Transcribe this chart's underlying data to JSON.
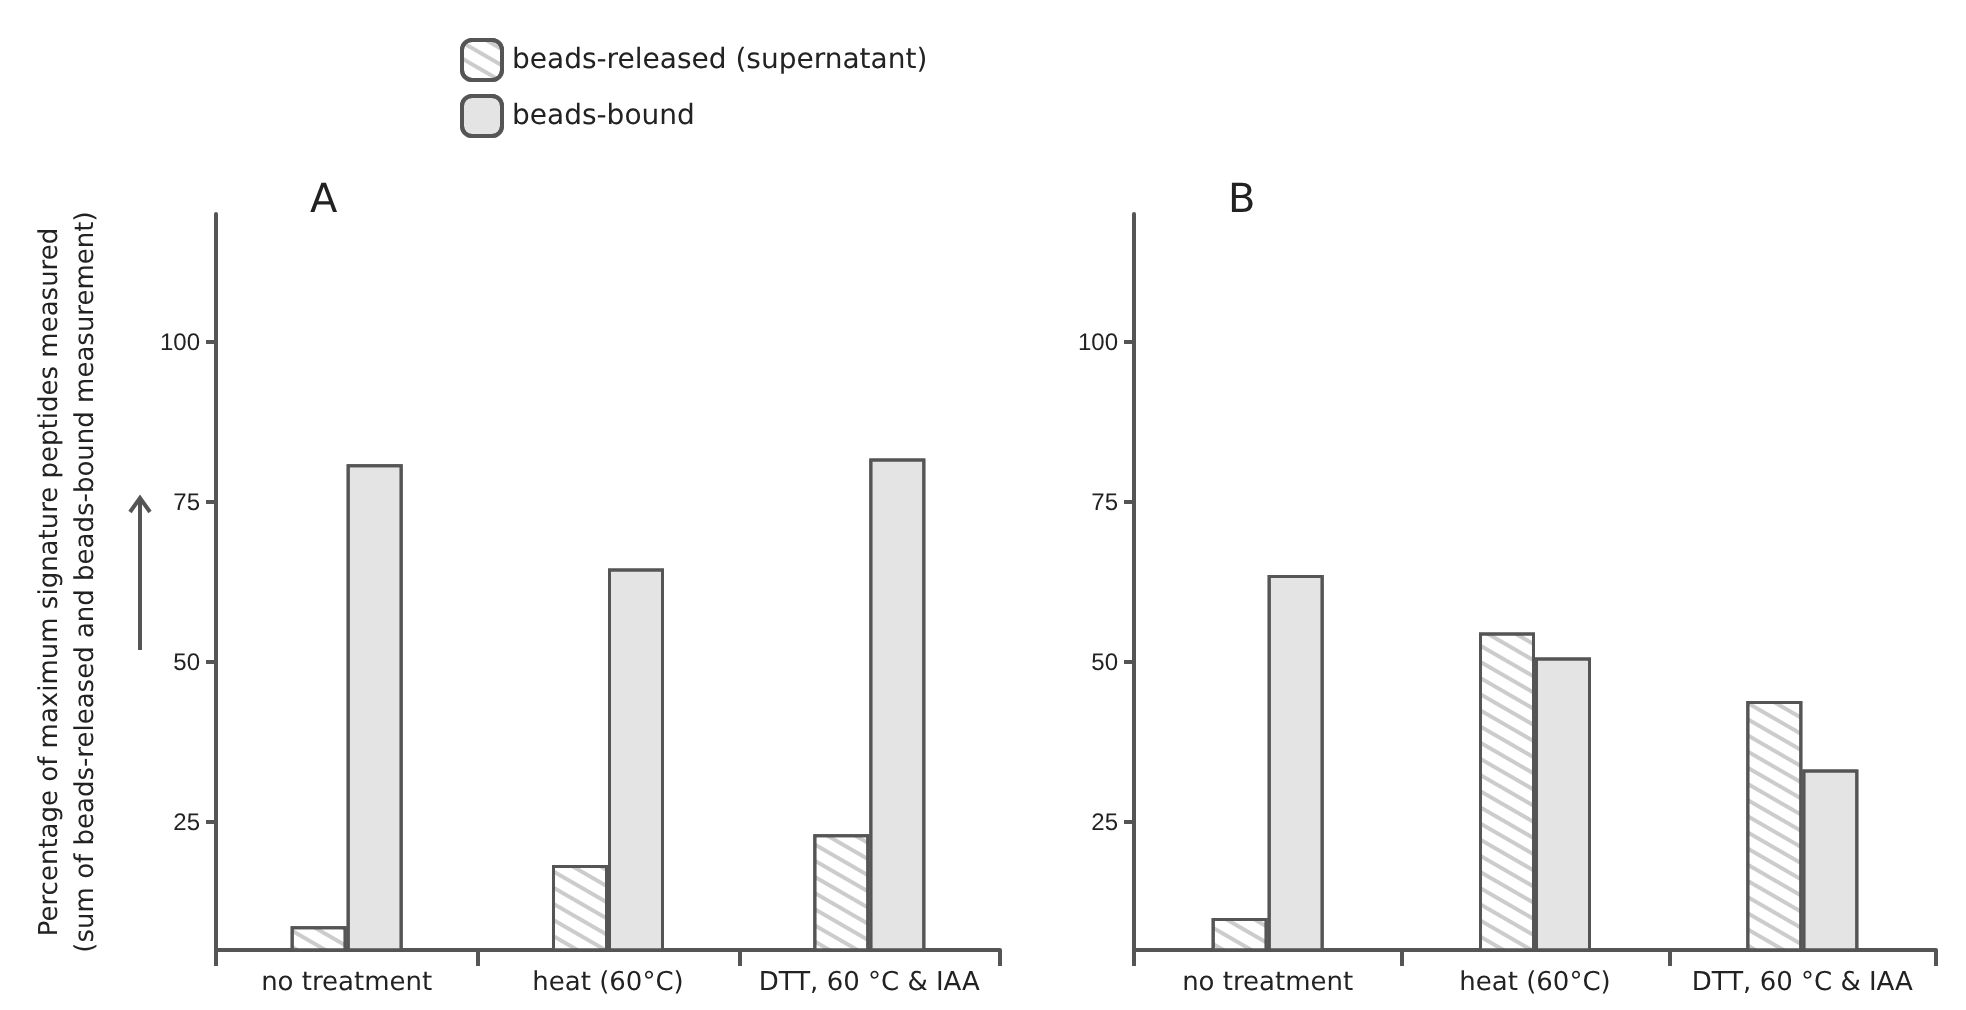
{
  "chart_data": [
    {
      "type": "bar",
      "title": "A",
      "ylabel": "Percentage of maximum signature peptides measured\n(sum of beads-released and beads-bound measurement)",
      "categories": [
        "no treatment",
        "heat (60°C)",
        "DTT, 60 °C & IAA"
      ],
      "series": [
        {
          "name": "beads-released (supernatant)",
          "color": "#ffffff",
          "values": [
            8.7,
            18.3,
            23.1
          ]
        },
        {
          "name": "beads-bound",
          "color": "#e4e4e4",
          "values": [
            80.9,
            64.6,
            81.8
          ]
        }
      ],
      "ylim": [
        5,
        120
      ],
      "yticks": [
        25,
        50,
        75,
        100
      ],
      "grid": false,
      "legend": "top"
    },
    {
      "type": "bar",
      "title": "B",
      "categories": [
        "no treatment",
        "heat (60°C)",
        "DTT, 60 °C & IAA"
      ],
      "series": [
        {
          "name": "beads-released (supernatant)",
          "color": "#ffffff",
          "values": [
            10,
            54.6,
            43.9
          ]
        },
        {
          "name": "beads-bound",
          "color": "#e4e4e4",
          "values": [
            63.6,
            50.7,
            33.2
          ]
        }
      ],
      "ylim": [
        5,
        120
      ],
      "yticks": [
        25,
        50,
        75,
        100
      ],
      "grid": false,
      "legend": false
    }
  ]
}
